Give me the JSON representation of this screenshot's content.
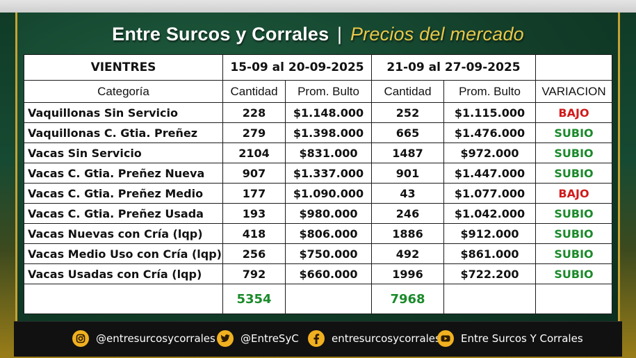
{
  "header": {
    "title_main": "Entre Surcos y Corrales",
    "separator": "|",
    "title_sub": "Precios del mercado"
  },
  "table": {
    "section_label": "VIENTRES",
    "period1": "15-09 al 20-09-2025",
    "period2": "21-09 al 27-09-2025",
    "col_categoria": "Categoría",
    "col_cantidad": "Cantidad",
    "col_prom": "Prom. Bulto",
    "col_variacion": "VARIACION",
    "rows": [
      {
        "cat": "Vaquillonas Sin Servicio",
        "q1": "228",
        "p1": "$1.148.000",
        "q2": "252",
        "p2": "$1.115.000",
        "var": "BAJO"
      },
      {
        "cat": "Vaquillonas C. Gtia. Preñez",
        "q1": "279",
        "p1": "$1.398.000",
        "q2": "665",
        "p2": "$1.476.000",
        "var": "SUBIO"
      },
      {
        "cat": "Vacas Sin Servicio",
        "q1": "2104",
        "p1": "$831.000",
        "q2": "1487",
        "p2": "$972.000",
        "var": "SUBIO"
      },
      {
        "cat": "Vacas C. Gtia. Preñez Nueva",
        "q1": "907",
        "p1": "$1.337.000",
        "q2": "901",
        "p2": "$1.447.000",
        "var": "SUBIO"
      },
      {
        "cat": "Vacas C. Gtia. Preñez Medio",
        "q1": "177",
        "p1": "$1.090.000",
        "q2": "43",
        "p2": "$1.077.000",
        "var": "BAJO"
      },
      {
        "cat": "Vacas C. Gtia. Preñez Usada",
        "q1": "193",
        "p1": "$980.000",
        "q2": "246",
        "p2": "$1.042.000",
        "var": "SUBIO"
      },
      {
        "cat": "Vacas Nuevas con Cría (lqp)",
        "q1": "418",
        "p1": "$806.000",
        "q2": "1886",
        "p2": "$912.000",
        "var": "SUBIO"
      },
      {
        "cat": "Vacas Medio Uso con Cría (lqp)",
        "q1": "256",
        "p1": "$750.000",
        "q2": "492",
        "p2": "$861.000",
        "var": "SUBIO"
      },
      {
        "cat": "Vacas Usadas con Cría (lqp)",
        "q1": "792",
        "p1": "$660.000",
        "q2": "1996",
        "p2": "$722.200",
        "var": "SUBIO"
      }
    ],
    "total1": "5354",
    "total2": "7968"
  },
  "social": {
    "instagram": "@entresurcosycorrales",
    "twitter": "@EntreSyC",
    "facebook": "entresurcosycorrales",
    "youtube": "Entre Surcos Y Corrales",
    "icons": [
      "instagram-icon",
      "twitter-icon",
      "facebook-icon",
      "youtube-icon"
    ]
  },
  "colors": {
    "bajo": "#d11a1a",
    "subio": "#1a8a2a",
    "accent": "#e8c84a",
    "icon_bg": "#f0b020"
  }
}
